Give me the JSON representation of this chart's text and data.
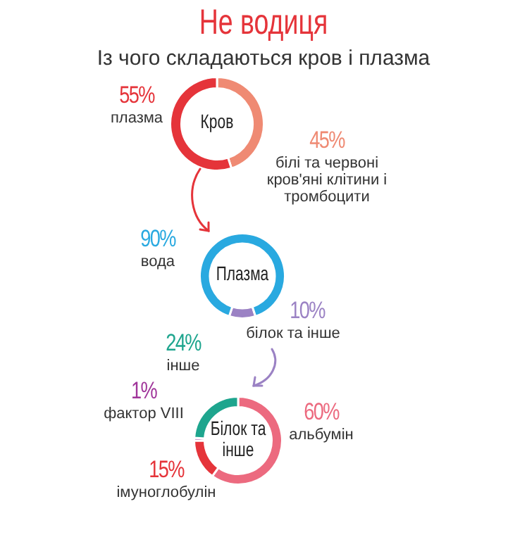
{
  "chart_data": [
    {
      "type": "donut",
      "title": "Не водиця",
      "subtitle": "Із чого складаються кров і плазма",
      "annotations": [
        "Кров"
      ],
      "categories": [
        "білі та червоні кров'яні клітини і тромбоцити",
        "плазма"
      ],
      "values": [
        45,
        55
      ],
      "colors": [
        "#ef8a73",
        "#e5343a"
      ],
      "value_labels": [
        "45%",
        "55%"
      ]
    },
    {
      "type": "donut",
      "annotations": [
        "Плазма"
      ],
      "categories": [
        "білок та інше",
        "вода"
      ],
      "values": [
        10,
        90
      ],
      "colors": [
        "#9b82c4",
        "#29a9e0"
      ],
      "value_labels": [
        "10%",
        "90%"
      ]
    },
    {
      "type": "donut",
      "annotations": [
        "Білок та інше"
      ],
      "categories": [
        "альбумін",
        "імуноглобулін",
        "фактор VIII",
        "інше"
      ],
      "values": [
        60,
        15,
        1,
        24
      ],
      "colors": [
        "#ec6a7f",
        "#e5343a",
        "#a0359a",
        "#1ea58e"
      ],
      "value_labels": [
        "60%",
        "15%",
        "1%",
        "24%"
      ]
    }
  ]
}
